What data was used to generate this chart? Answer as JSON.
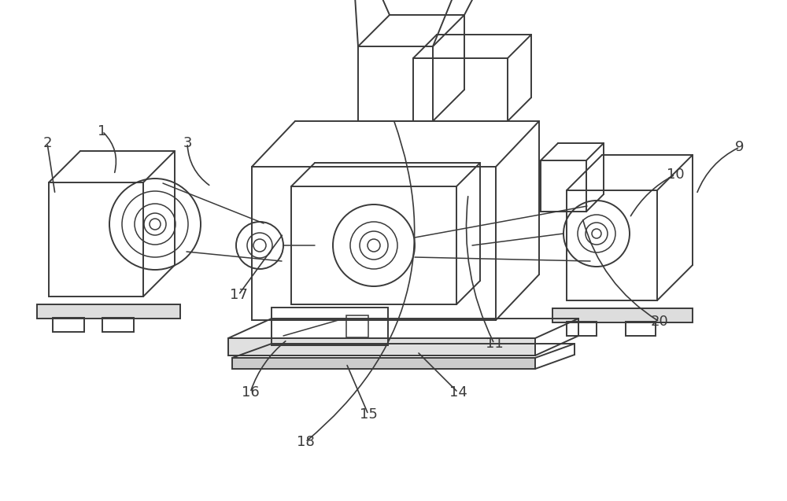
{
  "background_color": "#ffffff",
  "line_color": "#3a3a3a",
  "lw": 1.4,
  "lw2": 1.1,
  "figsize": [
    10.0,
    6.37
  ],
  "dpi": 100
}
